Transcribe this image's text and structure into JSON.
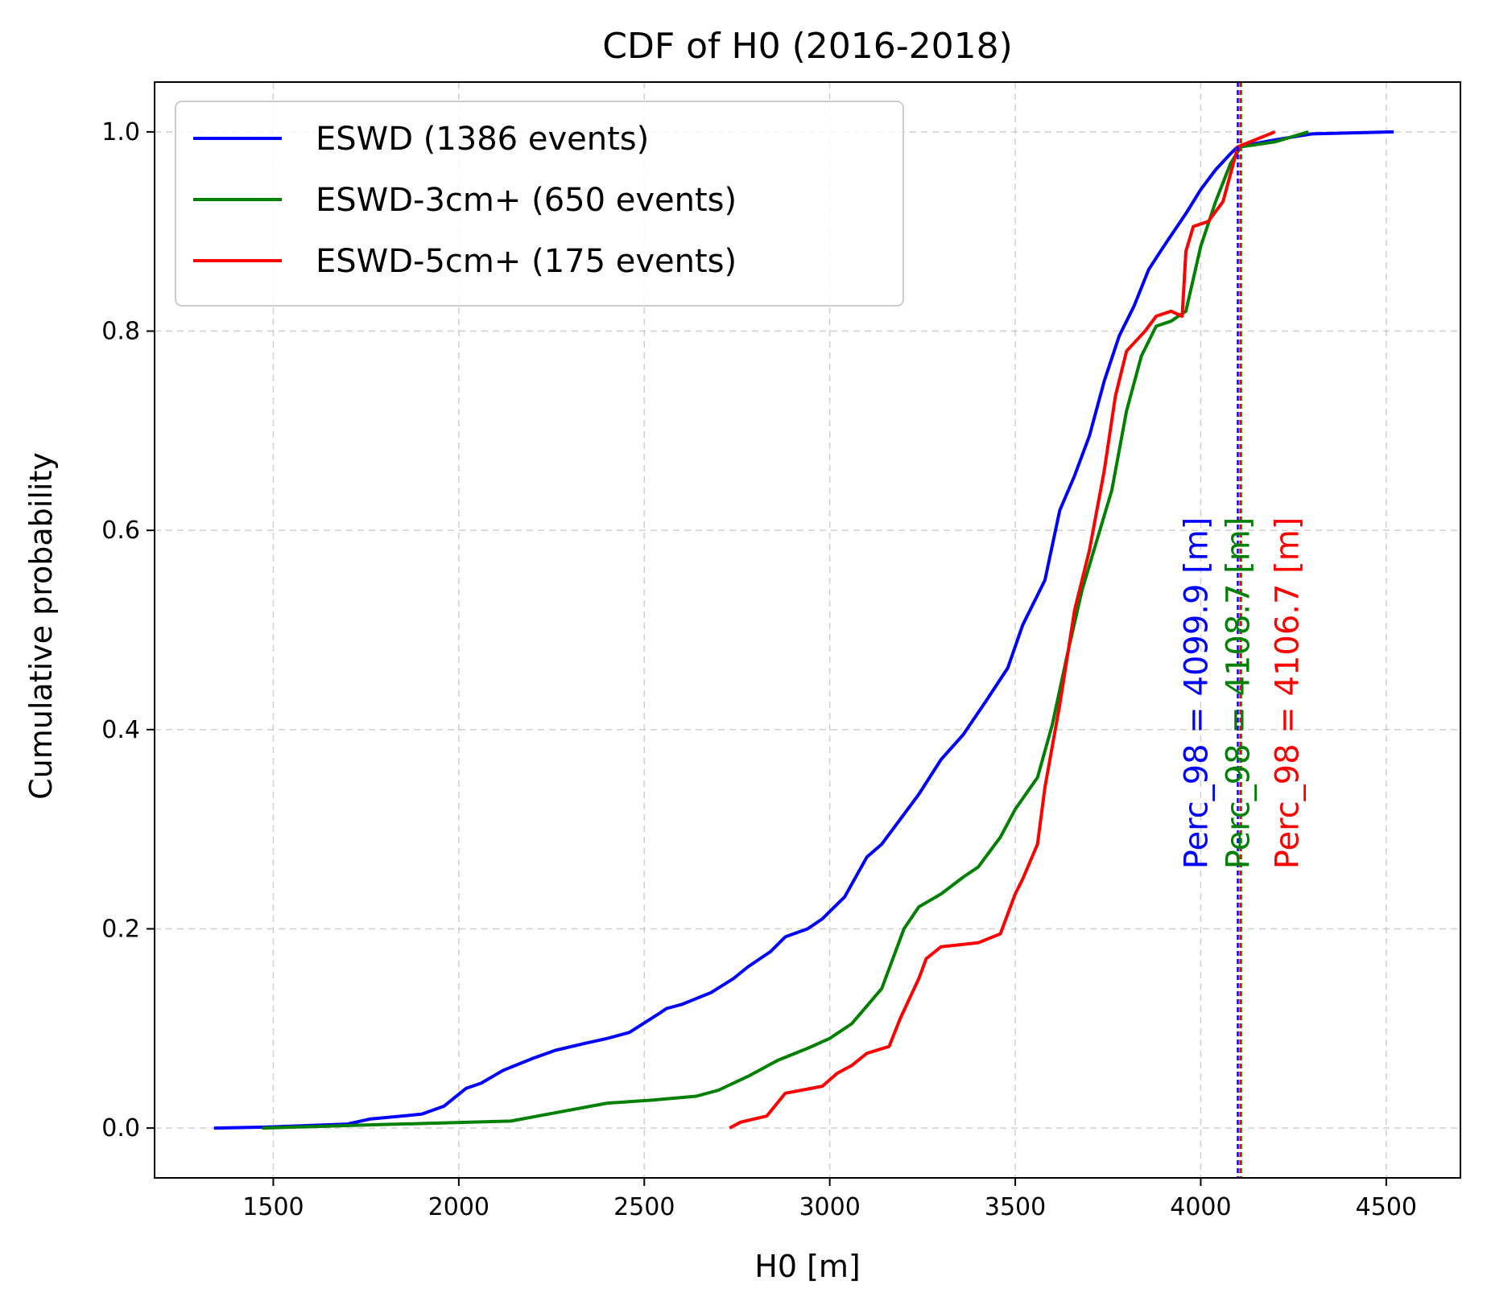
{
  "chart_data": {
    "type": "line",
    "title": "CDF of H0 (2016-2018)",
    "xlabel": "H0 [m]",
    "ylabel": "Cumulative probability",
    "xlim": [
      1180,
      4700
    ],
    "ylim": [
      -0.05,
      1.05
    ],
    "xticks": [
      1500,
      2000,
      2500,
      3000,
      3500,
      4000,
      4500
    ],
    "xtick_labels": [
      "1500",
      "2000",
      "2500",
      "3000",
      "3500",
      "4000",
      "4500"
    ],
    "yticks": [
      0.0,
      0.2,
      0.4,
      0.6,
      0.8,
      1.0
    ],
    "ytick_labels": [
      "0.0",
      "0.2",
      "0.4",
      "0.6",
      "0.8",
      "1.0"
    ],
    "grid": true,
    "legend_position": "top-left",
    "series": [
      {
        "name": "ESWD (1386 events)",
        "color": "#0000ff",
        "x": [
          1340,
          1480,
          1700,
          1760,
          1900,
          1960,
          2020,
          2060,
          2120,
          2200,
          2260,
          2340,
          2400,
          2460,
          2540,
          2560,
          2600,
          2680,
          2740,
          2780,
          2840,
          2880,
          2940,
          2980,
          3040,
          3100,
          3140,
          3200,
          3240,
          3300,
          3360,
          3420,
          3480,
          3520,
          3580,
          3620,
          3660,
          3700,
          3740,
          3780,
          3820,
          3860,
          3900,
          3960,
          4000,
          4040,
          4080,
          4100,
          4200,
          4300,
          4520
        ],
        "y": [
          0.0,
          0.001,
          0.004,
          0.009,
          0.014,
          0.022,
          0.04,
          0.045,
          0.058,
          0.07,
          0.078,
          0.085,
          0.09,
          0.096,
          0.115,
          0.12,
          0.124,
          0.136,
          0.15,
          0.162,
          0.177,
          0.192,
          0.2,
          0.21,
          0.232,
          0.272,
          0.285,
          0.315,
          0.335,
          0.37,
          0.395,
          0.428,
          0.462,
          0.505,
          0.55,
          0.62,
          0.655,
          0.695,
          0.75,
          0.795,
          0.825,
          0.862,
          0.885,
          0.918,
          0.942,
          0.962,
          0.978,
          0.985,
          0.992,
          0.998,
          1.0
        ]
      },
      {
        "name": "ESWD-3cm+ (650 events)",
        "color": "#008000",
        "x": [
          1470,
          1740,
          2140,
          2240,
          2400,
          2520,
          2640,
          2700,
          2780,
          2860,
          2940,
          3000,
          3060,
          3140,
          3200,
          3240,
          3300,
          3360,
          3400,
          3460,
          3500,
          3560,
          3600,
          3640,
          3680,
          3720,
          3760,
          3800,
          3840,
          3880,
          3920,
          3960,
          4000,
          4040,
          4080,
          4108,
          4200,
          4290
        ],
        "y": [
          0.0,
          0.003,
          0.007,
          0.014,
          0.025,
          0.028,
          0.032,
          0.038,
          0.052,
          0.068,
          0.08,
          0.09,
          0.105,
          0.14,
          0.2,
          0.222,
          0.235,
          0.252,
          0.262,
          0.292,
          0.32,
          0.352,
          0.405,
          0.475,
          0.54,
          0.59,
          0.64,
          0.72,
          0.775,
          0.805,
          0.81,
          0.82,
          0.885,
          0.93,
          0.968,
          0.985,
          0.99,
          1.0
        ]
      },
      {
        "name": "ESWD-5cm+ (175 events)",
        "color": "#ff0000",
        "x": [
          2730,
          2760,
          2830,
          2880,
          2980,
          3020,
          3060,
          3100,
          3160,
          3190,
          3240,
          3260,
          3300,
          3400,
          3460,
          3500,
          3520,
          3560,
          3580,
          3620,
          3660,
          3700,
          3740,
          3770,
          3800,
          3850,
          3880,
          3920,
          3950,
          3960,
          3980,
          4020,
          4060,
          4100,
          4200
        ],
        "y": [
          0.0,
          0.006,
          0.012,
          0.035,
          0.042,
          0.055,
          0.063,
          0.075,
          0.082,
          0.11,
          0.15,
          0.17,
          0.182,
          0.186,
          0.195,
          0.235,
          0.25,
          0.285,
          0.342,
          0.425,
          0.52,
          0.58,
          0.66,
          0.735,
          0.78,
          0.8,
          0.815,
          0.82,
          0.815,
          0.88,
          0.905,
          0.91,
          0.93,
          0.985,
          1.0
        ]
      }
    ],
    "vlines": [
      {
        "x": 4099.9,
        "color": "#0000ff",
        "label": "Perc_98 = 4099.9 [m]"
      },
      {
        "x": 4108.7,
        "color": "#008000",
        "label": "Perc_98 = 4108.7 [m]"
      },
      {
        "x": 4106.7,
        "color": "#ff0000",
        "label": "Perc_98 = 4106.7 [m]"
      }
    ]
  }
}
